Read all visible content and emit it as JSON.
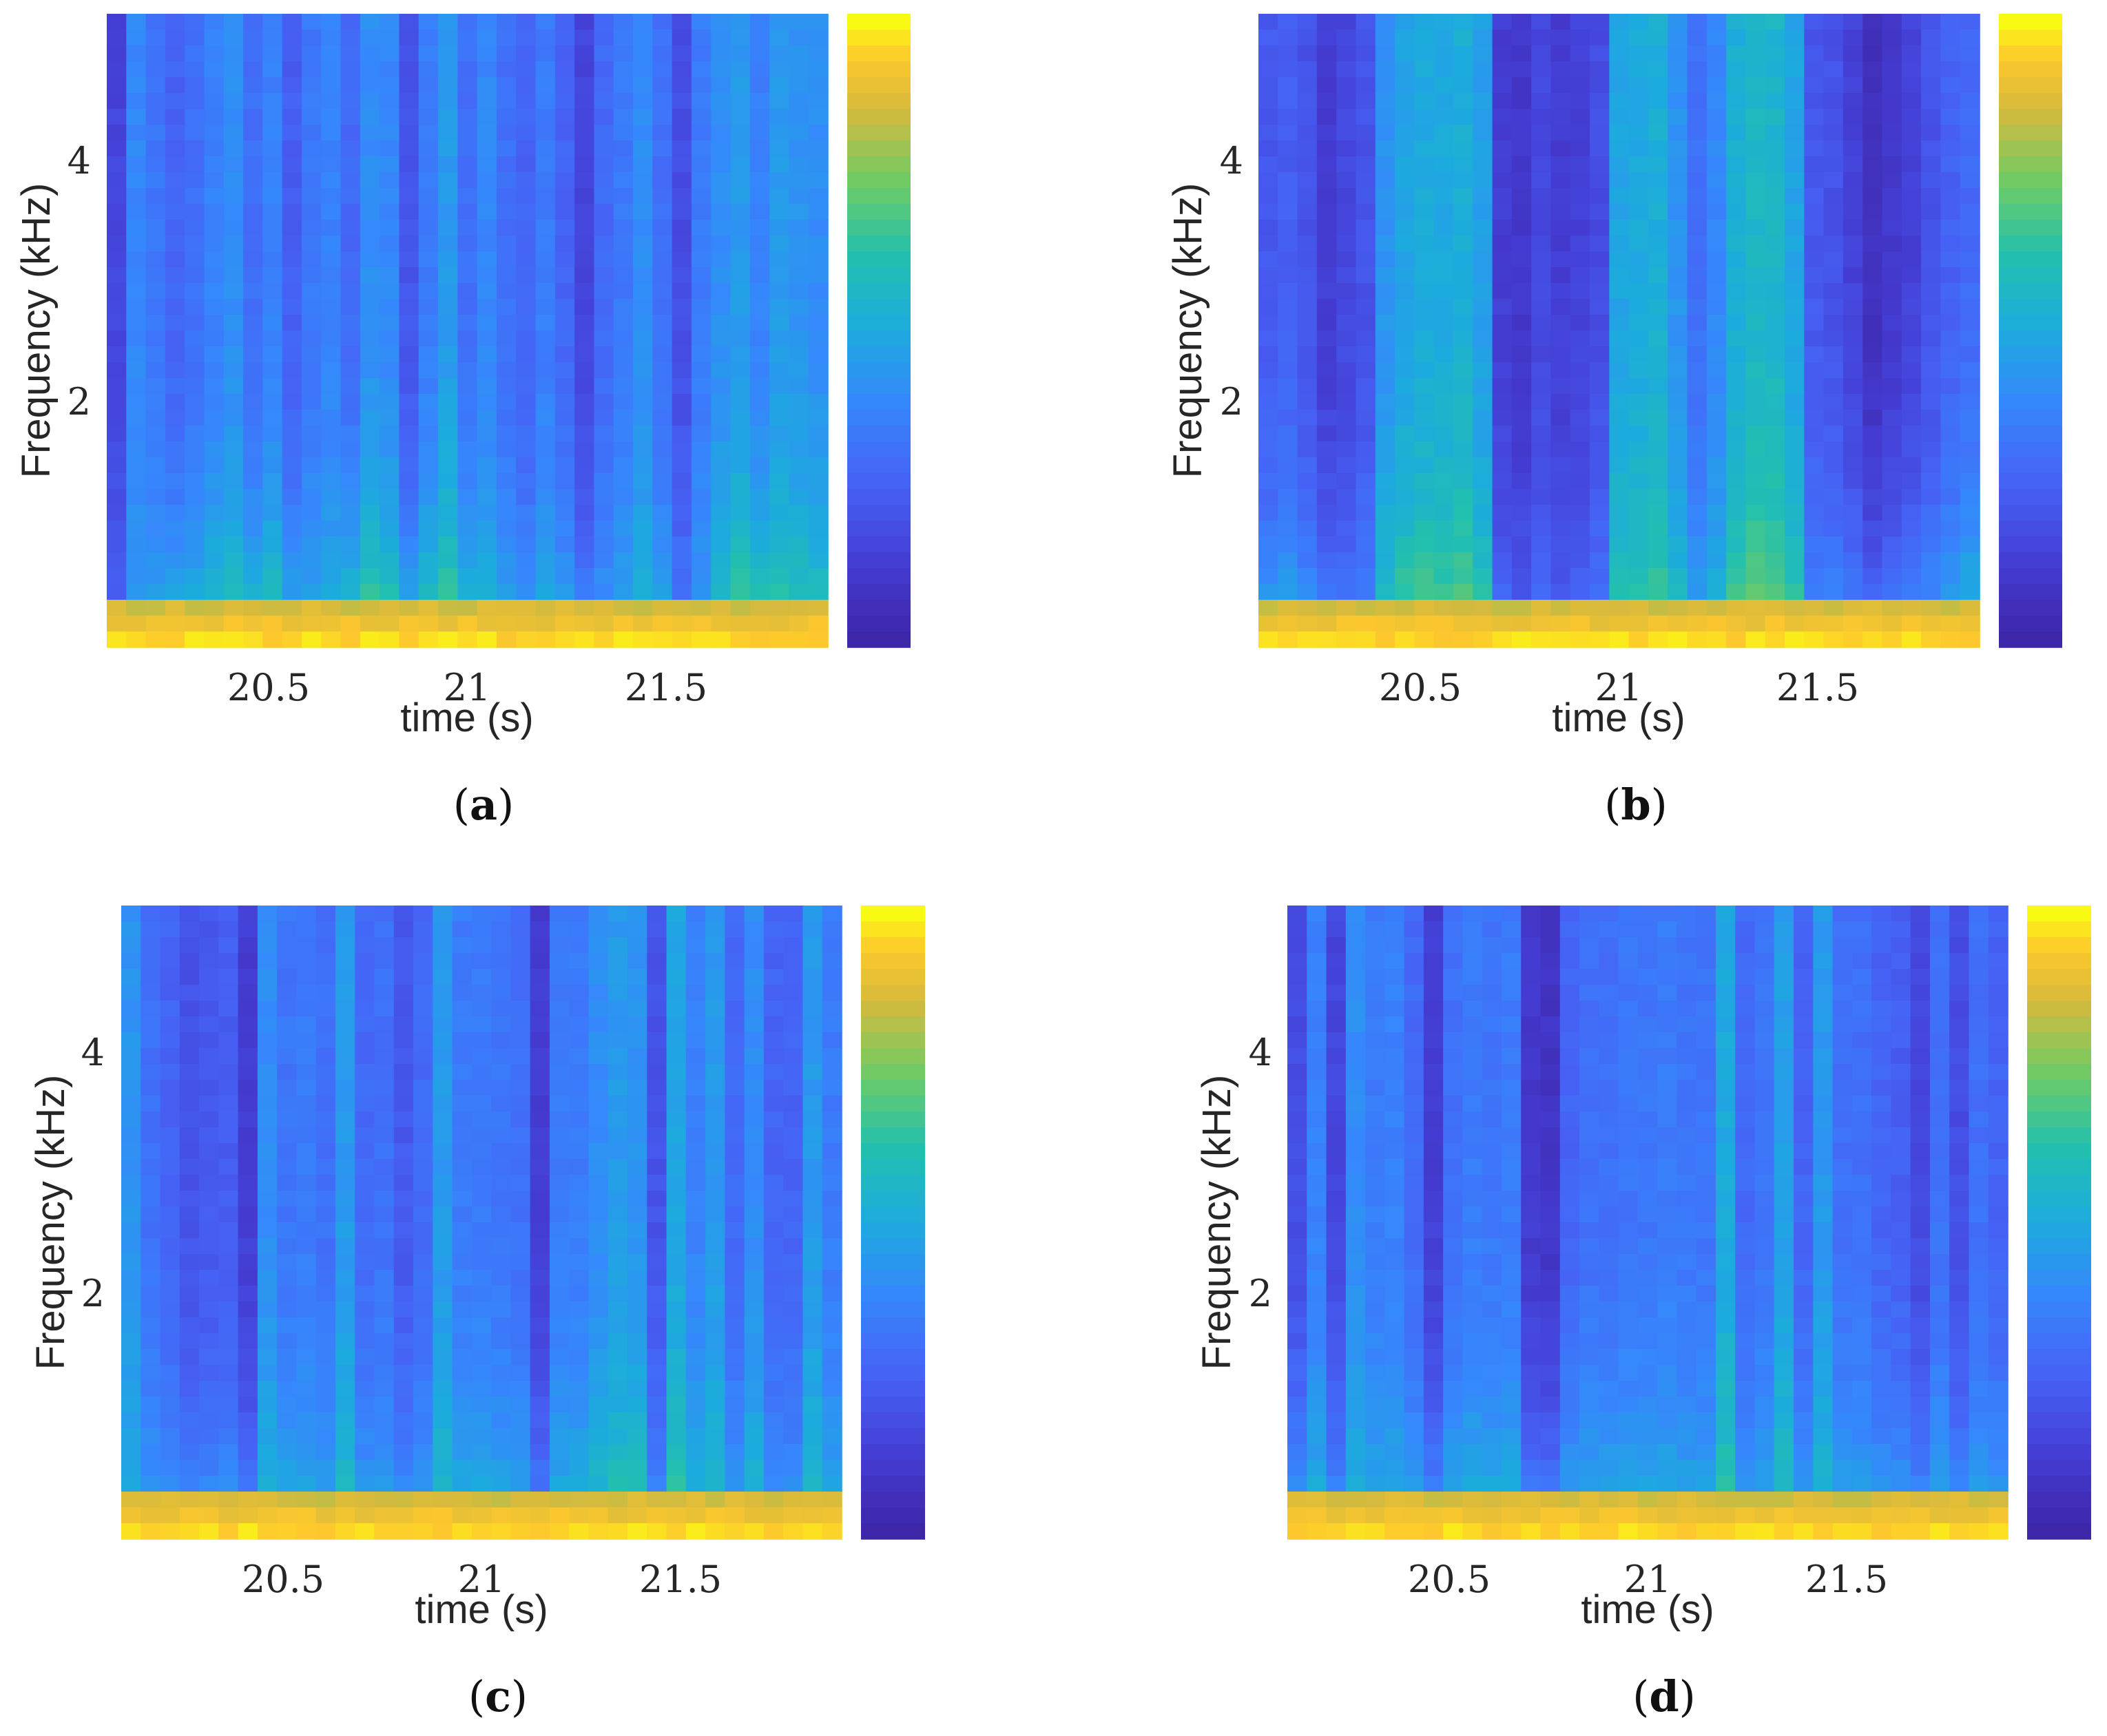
{
  "chart_data": [
    {
      "type": "heatmap",
      "caption_letter": "a",
      "xlabel": "time (s)",
      "ylabel": "Frequency (kHz)",
      "xticks": [
        20.5,
        21,
        21.5
      ],
      "xlim": [
        20.1,
        21.9
      ],
      "yticks": [
        2,
        4
      ],
      "ylim": [
        0,
        5.2
      ],
      "colormap": "parula",
      "columns": 37,
      "rows": 40,
      "column_base": [
        0.15,
        0.38,
        0.32,
        0.26,
        0.3,
        0.36,
        0.4,
        0.3,
        0.36,
        0.24,
        0.33,
        0.36,
        0.28,
        0.4,
        0.38,
        0.2,
        0.34,
        0.44,
        0.3,
        0.38,
        0.3,
        0.26,
        0.34,
        0.26,
        0.15,
        0.28,
        0.33,
        0.4,
        0.3,
        0.18,
        0.34,
        0.4,
        0.44,
        0.36,
        0.44,
        0.42,
        0.4
      ],
      "low_boost": [
        0.3,
        0.45,
        0.55,
        0.6,
        0.62,
        0.68,
        0.7,
        0.65,
        0.72,
        0.6,
        0.55,
        0.6,
        0.72,
        0.8,
        0.75,
        0.65,
        0.72,
        0.78,
        0.65,
        0.6,
        0.55,
        0.5,
        0.6,
        0.55,
        0.45,
        0.48,
        0.55,
        0.62,
        0.55,
        0.42,
        0.5,
        0.68,
        0.78,
        0.74,
        0.76,
        0.72,
        0.7
      ]
    },
    {
      "type": "heatmap",
      "caption_letter": "b",
      "xlabel": "time (s)",
      "ylabel": "Frequency (kHz)",
      "xticks": [
        20.5,
        21,
        21.5
      ],
      "xlim": [
        20.1,
        21.9
      ],
      "yticks": [
        2,
        4
      ],
      "ylim": [
        0,
        5.2
      ],
      "colormap": "parula",
      "columns": 37,
      "rows": 40,
      "column_base": [
        0.22,
        0.24,
        0.2,
        0.12,
        0.16,
        0.2,
        0.42,
        0.48,
        0.5,
        0.5,
        0.52,
        0.46,
        0.12,
        0.1,
        0.16,
        0.12,
        0.14,
        0.18,
        0.48,
        0.5,
        0.52,
        0.42,
        0.3,
        0.38,
        0.52,
        0.56,
        0.55,
        0.48,
        0.22,
        0.2,
        0.14,
        0.06,
        0.1,
        0.14,
        0.2,
        0.25,
        0.28
      ],
      "low_boost": [
        0.55,
        0.62,
        0.5,
        0.45,
        0.4,
        0.45,
        0.7,
        0.75,
        0.78,
        0.78,
        0.8,
        0.72,
        0.35,
        0.3,
        0.35,
        0.3,
        0.32,
        0.38,
        0.7,
        0.72,
        0.75,
        0.65,
        0.55,
        0.62,
        0.75,
        0.8,
        0.82,
        0.72,
        0.45,
        0.48,
        0.45,
        0.38,
        0.42,
        0.46,
        0.5,
        0.55,
        0.65
      ]
    },
    {
      "type": "heatmap",
      "caption_letter": "c",
      "xlabel": "time (s)",
      "ylabel": "Frequency (kHz)",
      "xticks": [
        20.5,
        21,
        21.5
      ],
      "xlim": [
        20.1,
        21.9
      ],
      "yticks": [
        2,
        4
      ],
      "ylim": [
        0,
        5.2
      ],
      "colormap": "parula",
      "columns": 37,
      "rows": 40,
      "column_base": [
        0.42,
        0.3,
        0.26,
        0.2,
        0.22,
        0.24,
        0.12,
        0.4,
        0.32,
        0.34,
        0.3,
        0.44,
        0.28,
        0.3,
        0.22,
        0.28,
        0.44,
        0.34,
        0.34,
        0.32,
        0.3,
        0.12,
        0.34,
        0.34,
        0.4,
        0.44,
        0.42,
        0.2,
        0.48,
        0.36,
        0.44,
        0.28,
        0.4,
        0.26,
        0.26,
        0.44,
        0.34
      ],
      "low_boost": [
        0.55,
        0.5,
        0.48,
        0.45,
        0.48,
        0.5,
        0.42,
        0.62,
        0.58,
        0.58,
        0.55,
        0.65,
        0.52,
        0.55,
        0.5,
        0.52,
        0.65,
        0.58,
        0.58,
        0.56,
        0.55,
        0.45,
        0.58,
        0.6,
        0.65,
        0.7,
        0.72,
        0.48,
        0.72,
        0.62,
        0.66,
        0.52,
        0.62,
        0.5,
        0.5,
        0.62,
        0.56
      ]
    },
    {
      "type": "heatmap",
      "caption_letter": "d",
      "xlabel": "time (s)",
      "ylabel": "Frequency (kHz)",
      "xticks": [
        20.5,
        21,
        21.5
      ],
      "xlim": [
        20.1,
        21.9
      ],
      "yticks": [
        2,
        4
      ],
      "ylim": [
        0,
        5.2
      ],
      "colormap": "parula",
      "columns": 37,
      "rows": 40,
      "column_base": [
        0.18,
        0.36,
        0.16,
        0.4,
        0.34,
        0.36,
        0.28,
        0.12,
        0.3,
        0.34,
        0.32,
        0.34,
        0.1,
        0.08,
        0.26,
        0.3,
        0.3,
        0.32,
        0.32,
        0.34,
        0.32,
        0.32,
        0.5,
        0.28,
        0.32,
        0.46,
        0.26,
        0.44,
        0.3,
        0.3,
        0.26,
        0.24,
        0.16,
        0.3,
        0.18,
        0.3,
        0.26
      ],
      "low_boost": [
        0.55,
        0.58,
        0.5,
        0.6,
        0.58,
        0.58,
        0.55,
        0.5,
        0.6,
        0.62,
        0.6,
        0.6,
        0.48,
        0.46,
        0.55,
        0.58,
        0.58,
        0.58,
        0.56,
        0.58,
        0.56,
        0.55,
        0.7,
        0.52,
        0.56,
        0.68,
        0.52,
        0.62,
        0.55,
        0.55,
        0.52,
        0.52,
        0.48,
        0.55,
        0.5,
        0.55,
        0.52
      ]
    }
  ]
}
